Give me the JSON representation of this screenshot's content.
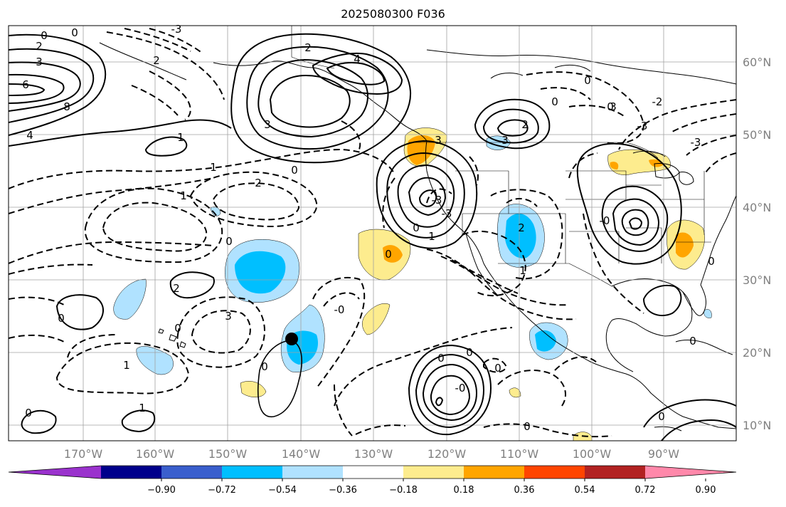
{
  "title": "2025080300 F036",
  "map": {
    "lon_range": [
      180,
      80
    ],
    "lat_range": [
      8,
      65
    ],
    "lon_ticks": [
      "170°W",
      "160°W",
      "150°W",
      "140°W",
      "130°W",
      "120°W",
      "110°W",
      "100°W",
      "90°W"
    ],
    "lat_ticks": [
      "60°N",
      "50°N",
      "40°N",
      "30°N",
      "20°N",
      "10°N"
    ],
    "gridlines": true,
    "storm_marker": {
      "label": "storm-center",
      "lon_w": 140,
      "lat": 22
    }
  },
  "contour_labels": [
    "0",
    "2",
    "3",
    "6",
    "8",
    "4",
    "1",
    "0",
    "2",
    "1",
    "-3",
    "2",
    "4",
    "3",
    "0",
    "1",
    "2",
    "0",
    "3",
    "0",
    "1",
    "-3",
    "-3",
    "0",
    "3",
    "2",
    "0",
    "-2",
    "-3",
    "-3",
    "2",
    "1",
    "3",
    "0",
    "2",
    "1",
    "0",
    "0",
    "1",
    "0",
    "-0",
    "0",
    "0",
    "-0",
    "0",
    "-0",
    "0",
    "0",
    "0",
    "0",
    "0",
    "0",
    "3"
  ],
  "colorbar": {
    "ticks": [
      "−0.90",
      "−0.72",
      "−0.54",
      "−0.36",
      "−0.18",
      "0.18",
      "0.36",
      "0.54",
      "0.72",
      "0.90"
    ],
    "colors": [
      "#9a32cd",
      "#00008b",
      "#3a5fcd",
      "#00bfff",
      "#b0e2ff",
      "#ffffff",
      "#fdec8e",
      "#ffa500",
      "#ff4500",
      "#b22222",
      "#ff88aa"
    ]
  }
}
